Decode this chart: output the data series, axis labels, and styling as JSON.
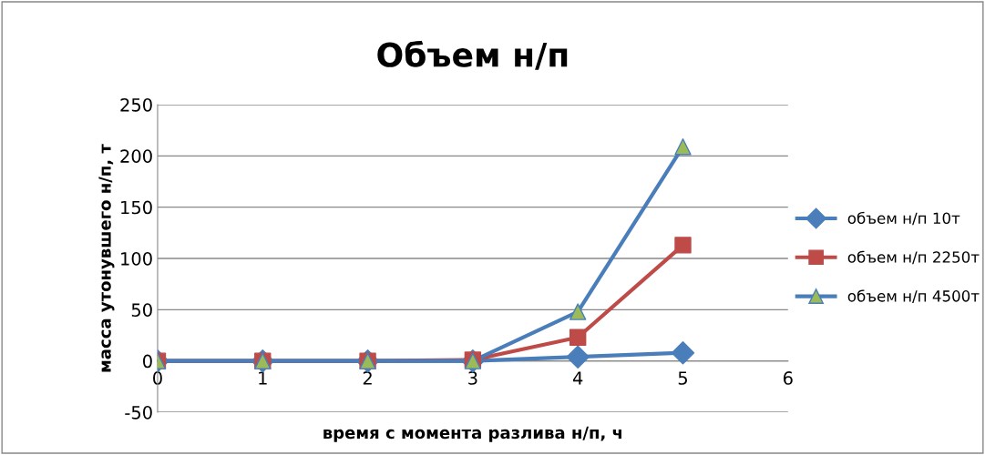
{
  "chart_data": {
    "type": "line",
    "title": "Объем н/п",
    "xlabel": "время с момента разлива н/п, ч",
    "ylabel": "масса утонувшего н/п, т",
    "x": [
      0,
      1,
      2,
      3,
      4,
      5
    ],
    "series": [
      {
        "name": "объем н/п 10т",
        "color": "#4a7ebb",
        "marker": "diamond",
        "values": [
          0,
          0,
          0,
          0,
          4,
          8
        ]
      },
      {
        "name": "объем н/п 2250т",
        "color": "#be4b48",
        "marker": "square",
        "values": [
          0,
          0,
          0,
          1,
          23,
          113
        ]
      },
      {
        "name": "объем н/п 4500т",
        "color": "#4a7ebb",
        "marker": "triangle",
        "colors": [
          "#9bbb59",
          "#9bbb59",
          "#9bbb59",
          "#9bbb59",
          "#9bbb59",
          "#9bbb59"
        ],
        "values": [
          0,
          0,
          0,
          0,
          48,
          209
        ]
      }
    ],
    "xlim": [
      0,
      6
    ],
    "xticks": [
      0,
      1,
      2,
      3,
      4,
      5,
      6
    ],
    "ylim": [
      -50,
      250
    ],
    "yticks": [
      -50,
      0,
      50,
      100,
      150,
      200,
      250
    ],
    "grid": "y",
    "legend": "right",
    "line_style": "solid"
  }
}
